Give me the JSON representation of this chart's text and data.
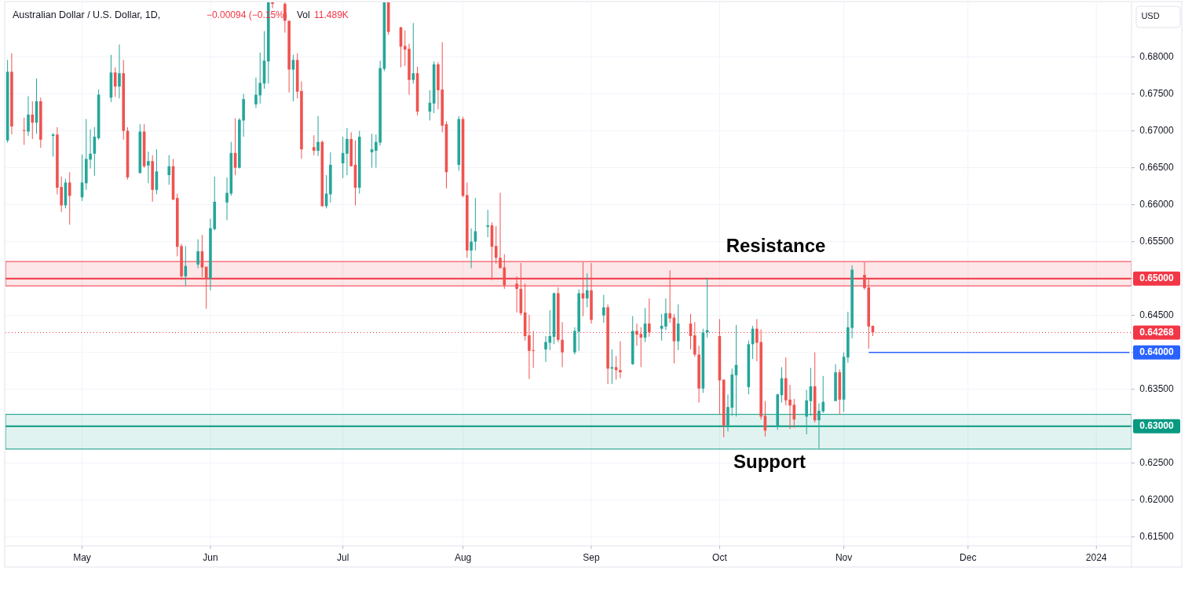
{
  "chart_data": {
    "type": "candlestick",
    "title": "Australian Dollar / U.S. Dollar, 1D,",
    "ylabel": "USD",
    "annotations": [
      "−0.00094 (−0.15%)",
      "Vol",
      "11.489K"
    ],
    "x": [
      "2023-04-13",
      "2023-04-14",
      "2023-04-17",
      "2023-04-18",
      "2023-04-19",
      "2023-04-20",
      "2023-04-21",
      "2023-04-24",
      "2023-04-25",
      "2023-04-26",
      "2023-04-27",
      "2023-04-28",
      "2023-05-01",
      "2023-05-02",
      "2023-05-03",
      "2023-05-04",
      "2023-05-05",
      "2023-05-08",
      "2023-05-09",
      "2023-05-10",
      "2023-05-11",
      "2023-05-12",
      "2023-05-15",
      "2023-05-16",
      "2023-05-17",
      "2023-05-18",
      "2023-05-19",
      "2023-05-22",
      "2023-05-23",
      "2023-05-24",
      "2023-05-25",
      "2023-05-26",
      "2023-05-29",
      "2023-05-30",
      "2023-05-31",
      "2023-06-01",
      "2023-06-02",
      "2023-06-05",
      "2023-06-06",
      "2023-06-07",
      "2023-06-08",
      "2023-06-09",
      "2023-06-12",
      "2023-06-13",
      "2023-06-14",
      "2023-06-15",
      "2023-06-16",
      "2023-06-19",
      "2023-06-20",
      "2023-06-21",
      "2023-06-22",
      "2023-06-23",
      "2023-06-26",
      "2023-06-27",
      "2023-06-28",
      "2023-06-29",
      "2023-06-30",
      "2023-07-03",
      "2023-07-04",
      "2023-07-05",
      "2023-07-06",
      "2023-07-07",
      "2023-07-10",
      "2023-07-11",
      "2023-07-12",
      "2023-07-13",
      "2023-07-14",
      "2023-07-17",
      "2023-07-18",
      "2023-07-19",
      "2023-07-20",
      "2023-07-21",
      "2023-07-24",
      "2023-07-25",
      "2023-07-26",
      "2023-07-27",
      "2023-07-28",
      "2023-07-31",
      "2023-08-01",
      "2023-08-02",
      "2023-08-03",
      "2023-08-04",
      "2023-08-07",
      "2023-08-08",
      "2023-08-09",
      "2023-08-10",
      "2023-08-11",
      "2023-08-14",
      "2023-08-15",
      "2023-08-16",
      "2023-08-17",
      "2023-08-18",
      "2023-08-21",
      "2023-08-22",
      "2023-08-23",
      "2023-08-24",
      "2023-08-25",
      "2023-08-28",
      "2023-08-29",
      "2023-08-30",
      "2023-08-31",
      "2023-09-01",
      "2023-09-04",
      "2023-09-05",
      "2023-09-06",
      "2023-09-07",
      "2023-09-08",
      "2023-09-11",
      "2023-09-12",
      "2023-09-13",
      "2023-09-14",
      "2023-09-15",
      "2023-09-18",
      "2023-09-19",
      "2023-09-20",
      "2023-09-21",
      "2023-09-22",
      "2023-09-25",
      "2023-09-26",
      "2023-09-27",
      "2023-09-28",
      "2023-09-29",
      "2023-10-02",
      "2023-10-03",
      "2023-10-04",
      "2023-10-05",
      "2023-10-06",
      "2023-10-09",
      "2023-10-10",
      "2023-10-11",
      "2023-10-12",
      "2023-10-13",
      "2023-10-16",
      "2023-10-17",
      "2023-10-18",
      "2023-10-19",
      "2023-10-20",
      "2023-10-23",
      "2023-10-24",
      "2023-10-25",
      "2023-10-26",
      "2023-10-27",
      "2023-10-30",
      "2023-10-31",
      "2023-11-01",
      "2023-11-02",
      "2023-11-03",
      "2023-11-06",
      "2023-11-07",
      "2023-11-08"
    ],
    "ohlc": [
      [
        0.6687,
        0.6796,
        0.6684,
        0.678
      ],
      [
        0.678,
        0.6805,
        0.6695,
        0.6706
      ],
      [
        0.6701,
        0.6718,
        0.6681,
        0.67
      ],
      [
        0.6699,
        0.6747,
        0.6693,
        0.6722
      ],
      [
        0.6722,
        0.674,
        0.6689,
        0.6711
      ],
      [
        0.6711,
        0.6771,
        0.6696,
        0.674
      ],
      [
        0.674,
        0.6745,
        0.6677,
        0.6688
      ],
      [
        0.6693,
        0.6697,
        0.6665,
        0.6695
      ],
      [
        0.6695,
        0.6705,
        0.6614,
        0.6623
      ],
      [
        0.6624,
        0.6638,
        0.659,
        0.6599
      ],
      [
        0.6599,
        0.6635,
        0.6595,
        0.663
      ],
      [
        0.663,
        0.6644,
        0.6573,
        0.6612
      ],
      [
        0.661,
        0.6668,
        0.6605,
        0.663
      ],
      [
        0.6629,
        0.6716,
        0.662,
        0.6662
      ],
      [
        0.6661,
        0.6702,
        0.6649,
        0.6669
      ],
      [
        0.6669,
        0.6705,
        0.6639,
        0.6692
      ],
      [
        0.669,
        0.6756,
        0.6688,
        0.6749
      ],
      [
        0.6745,
        0.6803,
        0.6739,
        0.6779
      ],
      [
        0.6779,
        0.6786,
        0.6746,
        0.676
      ],
      [
        0.676,
        0.6817,
        0.6744,
        0.6778
      ],
      [
        0.6778,
        0.6796,
        0.6688,
        0.67
      ],
      [
        0.67,
        0.6705,
        0.6634,
        0.6637
      ],
      [
        0.6643,
        0.6709,
        0.6642,
        0.6699
      ],
      [
        0.6699,
        0.6709,
        0.665,
        0.6652
      ],
      [
        0.6653,
        0.6672,
        0.6629,
        0.6659
      ],
      [
        0.6659,
        0.6667,
        0.6604,
        0.662
      ],
      [
        0.662,
        0.6675,
        0.6614,
        0.6645
      ],
      [
        0.664,
        0.6667,
        0.6627,
        0.6652
      ],
      [
        0.6652,
        0.6662,
        0.6606,
        0.6607
      ],
      [
        0.6609,
        0.6615,
        0.653,
        0.6543
      ],
      [
        0.6544,
        0.6547,
        0.6498,
        0.6503
      ],
      [
        0.6503,
        0.6544,
        0.649,
        0.6517
      ],
      [
        0.6519,
        0.6553,
        0.6514,
        0.6537
      ],
      [
        0.6537,
        0.6559,
        0.6502,
        0.6515
      ],
      [
        0.6516,
        0.6516,
        0.6459,
        0.65
      ],
      [
        0.65,
        0.6581,
        0.6484,
        0.6568
      ],
      [
        0.6567,
        0.6638,
        0.6565,
        0.6604
      ],
      [
        0.6603,
        0.6637,
        0.6579,
        0.6616
      ],
      [
        0.6615,
        0.6685,
        0.6612,
        0.667
      ],
      [
        0.667,
        0.6717,
        0.664,
        0.665
      ],
      [
        0.665,
        0.6717,
        0.6649,
        0.6715
      ],
      [
        0.6714,
        0.675,
        0.6692,
        0.6743
      ],
      [
        0.6736,
        0.6772,
        0.6731,
        0.6749
      ],
      [
        0.6748,
        0.6806,
        0.6737,
        0.6765
      ],
      [
        0.6764,
        0.6835,
        0.6757,
        0.6795
      ],
      [
        0.6794,
        0.6874,
        0.6764,
        0.6874
      ],
      [
        0.6874,
        0.6874,
        0.6866,
        0.6872
      ],
      [
        0.6872,
        0.6874,
        0.6833,
        0.6849
      ],
      [
        0.6849,
        0.6849,
        0.6752,
        0.6783
      ],
      [
        0.6783,
        0.6803,
        0.674,
        0.6796
      ],
      [
        0.6796,
        0.6805,
        0.6744,
        0.6753
      ],
      [
        0.6754,
        0.6767,
        0.6662,
        0.6675
      ],
      [
        0.6678,
        0.6694,
        0.6667,
        0.6673
      ],
      [
        0.6673,
        0.672,
        0.6666,
        0.6685
      ],
      [
        0.6685,
        0.6687,
        0.6597,
        0.6598
      ],
      [
        0.6598,
        0.664,
        0.6595,
        0.6615
      ],
      [
        0.6614,
        0.6671,
        0.6603,
        0.6654
      ],
      [
        0.6656,
        0.6692,
        0.6636,
        0.667
      ],
      [
        0.6669,
        0.6704,
        0.664,
        0.6689
      ],
      [
        0.6689,
        0.6698,
        0.6652,
        0.6652
      ],
      [
        0.6654,
        0.6687,
        0.6599,
        0.6623
      ],
      [
        0.6623,
        0.67,
        0.6615,
        0.6692
      ],
      [
        0.6671,
        0.6696,
        0.665,
        0.6675
      ],
      [
        0.6673,
        0.6695,
        0.665,
        0.6685
      ],
      [
        0.6684,
        0.6795,
        0.668,
        0.6785
      ],
      [
        0.6784,
        0.6874,
        0.6781,
        0.6874
      ],
      [
        0.6874,
        0.6874,
        0.683,
        0.6834
      ],
      [
        0.684,
        0.6841,
        0.6786,
        0.6814
      ],
      [
        0.6815,
        0.6836,
        0.6788,
        0.681
      ],
      [
        0.6811,
        0.6818,
        0.6749,
        0.6769
      ],
      [
        0.6769,
        0.6846,
        0.6764,
        0.6778
      ],
      [
        0.6778,
        0.6787,
        0.6721,
        0.6726
      ],
      [
        0.6726,
        0.6755,
        0.6714,
        0.6738
      ],
      [
        0.6737,
        0.6794,
        0.6724,
        0.679
      ],
      [
        0.679,
        0.6793,
        0.6729,
        0.6755
      ],
      [
        0.6756,
        0.682,
        0.6698,
        0.6707
      ],
      [
        0.6709,
        0.6713,
        0.6622,
        0.6644
      ],
      [
        0.6654,
        0.672,
        0.6646,
        0.6716
      ],
      [
        0.6716,
        0.6719,
        0.661,
        0.6612
      ],
      [
        0.6613,
        0.663,
        0.6528,
        0.6538
      ],
      [
        0.6538,
        0.6568,
        0.6514,
        0.655
      ],
      [
        0.655,
        0.6609,
        0.6538,
        0.6564
      ],
      [
        0.657,
        0.6593,
        0.6556,
        0.6572
      ],
      [
        0.6572,
        0.6576,
        0.6498,
        0.6543
      ],
      [
        0.6544,
        0.6571,
        0.652,
        0.6528
      ],
      [
        0.6528,
        0.6616,
        0.6514,
        0.6514
      ],
      [
        0.6515,
        0.6533,
        0.6486,
        0.6491
      ],
      [
        0.6493,
        0.6503,
        0.6454,
        0.6486
      ],
      [
        0.6486,
        0.6521,
        0.645,
        0.6453
      ],
      [
        0.6454,
        0.6493,
        0.6416,
        0.6422
      ],
      [
        0.6423,
        0.6451,
        0.6364,
        0.6402
      ],
      [
        0.6403,
        0.6429,
        0.6379,
        0.6402
      ],
      [
        0.6404,
        0.6422,
        0.6387,
        0.6414
      ],
      [
        0.6413,
        0.6457,
        0.6403,
        0.6422
      ],
      [
        0.6421,
        0.6481,
        0.6411,
        0.648
      ],
      [
        0.648,
        0.6488,
        0.6414,
        0.6417
      ],
      [
        0.6417,
        0.6441,
        0.638,
        0.64
      ],
      [
        0.64,
        0.6434,
        0.6397,
        0.6429
      ],
      [
        0.6428,
        0.6485,
        0.6402,
        0.648
      ],
      [
        0.648,
        0.6522,
        0.6449,
        0.6473
      ],
      [
        0.6473,
        0.6507,
        0.6461,
        0.6484
      ],
      [
        0.6484,
        0.6521,
        0.6439,
        0.6444
      ],
      [
        0.645,
        0.6478,
        0.644,
        0.6461
      ],
      [
        0.6461,
        0.6465,
        0.6357,
        0.6378
      ],
      [
        0.6378,
        0.6404,
        0.6357,
        0.638
      ],
      [
        0.638,
        0.6395,
        0.6363,
        0.6376
      ],
      [
        0.6376,
        0.6415,
        0.6365,
        0.6373
      ],
      [
        0.6384,
        0.6449,
        0.6383,
        0.6429
      ],
      [
        0.6429,
        0.6439,
        0.6409,
        0.6424
      ],
      [
        0.6425,
        0.6434,
        0.638,
        0.642
      ],
      [
        0.642,
        0.646,
        0.6414,
        0.6439
      ],
      [
        0.6439,
        0.6473,
        0.6421,
        0.6427
      ],
      [
        0.6432,
        0.6452,
        0.6416,
        0.6436
      ],
      [
        0.6435,
        0.6473,
        0.643,
        0.6453
      ],
      [
        0.6453,
        0.6511,
        0.644,
        0.6446
      ],
      [
        0.6447,
        0.6452,
        0.6385,
        0.6415
      ],
      [
        0.6415,
        0.6465,
        0.6403,
        0.6439
      ],
      [
        0.6439,
        0.6452,
        0.6404,
        0.6422
      ],
      [
        0.6423,
        0.6441,
        0.6394,
        0.6397
      ],
      [
        0.6397,
        0.6409,
        0.6332,
        0.6351
      ],
      [
        0.6351,
        0.6432,
        0.6345,
        0.6427
      ],
      [
        0.6427,
        0.6501,
        0.642,
        0.643
      ],
      [
        0.6422,
        0.6445,
        0.6316,
        0.6362
      ],
      [
        0.6363,
        0.6363,
        0.6285,
        0.6301
      ],
      [
        0.6301,
        0.6343,
        0.6293,
        0.6326
      ],
      [
        0.6325,
        0.6378,
        0.6314,
        0.637
      ],
      [
        0.6369,
        0.6437,
        0.6313,
        0.6383
      ],
      [
        0.6353,
        0.6416,
        0.6343,
        0.6411
      ],
      [
        0.6411,
        0.6436,
        0.6391,
        0.6432
      ],
      [
        0.6432,
        0.6445,
        0.6388,
        0.6413
      ],
      [
        0.6414,
        0.6431,
        0.6309,
        0.6313
      ],
      [
        0.6314,
        0.6334,
        0.6286,
        0.6294
      ],
      [
        0.63,
        0.6344,
        0.6295,
        0.6343
      ],
      [
        0.6342,
        0.638,
        0.6332,
        0.6365
      ],
      [
        0.6365,
        0.6393,
        0.6328,
        0.6335
      ],
      [
        0.6336,
        0.6356,
        0.6296,
        0.6328
      ],
      [
        0.6329,
        0.6337,
        0.6298,
        0.6309
      ],
      [
        0.6313,
        0.6349,
        0.6289,
        0.6335
      ],
      [
        0.6334,
        0.6379,
        0.6314,
        0.6354
      ],
      [
        0.6354,
        0.64,
        0.6305,
        0.6308
      ],
      [
        0.6308,
        0.6331,
        0.627,
        0.6321
      ],
      [
        0.632,
        0.6368,
        0.6318,
        0.6333
      ],
      [
        0.6334,
        0.6384,
        0.6334,
        0.6373
      ],
      [
        0.6373,
        0.6377,
        0.6316,
        0.6336
      ],
      [
        0.6336,
        0.64,
        0.6319,
        0.6394
      ],
      [
        0.6393,
        0.6455,
        0.6386,
        0.6434
      ],
      [
        0.6433,
        0.6518,
        0.6419,
        0.6512
      ],
      [
        0.6505,
        0.6522,
        0.6485,
        0.6487
      ],
      [
        0.6488,
        0.6501,
        0.6405,
        0.6435
      ],
      [
        0.6436,
        0.6436,
        0.6422,
        0.6427
      ]
    ],
    "series": [
      {
        "type": "line",
        "color": "#2962ff",
        "x": [
          "2023-11-07",
          "2024-01-09"
        ],
        "values": [
          0.64,
          0.64
        ],
        "value_labels": [
          null,
          "0.64000"
        ]
      }
    ],
    "bands": [
      {
        "axis": "y",
        "from": 0.649,
        "to": 0.6523,
        "label": "Resistance",
        "color": "#f23645"
      },
      {
        "axis": "y",
        "from": 0.6269,
        "to": 0.6316,
        "label": "Support",
        "color": "#089981"
      }
    ],
    "ref_lines": [
      {
        "axis": "y",
        "value": 0.65,
        "label": "0.65000",
        "color": "#f23645"
      },
      {
        "axis": "y",
        "value": 0.63,
        "label": "0.63000",
        "color": "#089981"
      },
      {
        "axis": "y",
        "value": 0.64268,
        "label": "0.64268",
        "color": "#f23645",
        "line_style": "dotted"
      }
    ],
    "xlim": [
      "2023-04-13",
      "2024-01-09"
    ],
    "xticks": [
      {
        "value": "2023-05-01",
        "label": "May"
      },
      {
        "value": "2023-06-01",
        "label": "Jun"
      },
      {
        "value": "2023-07-03",
        "label": "Jul"
      },
      {
        "value": "2023-08-01",
        "label": "Aug"
      },
      {
        "value": "2023-09-01",
        "label": "Sep"
      },
      {
        "value": "2023-10-02",
        "label": "Oct"
      },
      {
        "value": "2023-11-01",
        "label": "Nov"
      },
      {
        "value": "2023-12-01",
        "label": "Dec"
      },
      {
        "value": "2024-01-01",
        "label": "2024"
      }
    ],
    "ylim": [
      0.6138,
      0.6874
    ],
    "yticks": [
      {
        "value": 0.615,
        "label": "0.61500"
      },
      {
        "value": 0.62,
        "label": "0.62000"
      },
      {
        "value": 0.625,
        "label": "0.62500"
      },
      {
        "value": 0.63,
        "label": null
      },
      {
        "value": 0.635,
        "label": "0.63500"
      },
      {
        "value": 0.64,
        "label": null
      },
      {
        "value": 0.645,
        "label": "0.64500"
      },
      {
        "value": 0.65,
        "label": null
      },
      {
        "value": 0.655,
        "label": "0.65500"
      },
      {
        "value": 0.66,
        "label": "0.66000"
      },
      {
        "value": 0.665,
        "label": "0.66500"
      },
      {
        "value": 0.67,
        "label": "0.67000"
      },
      {
        "value": 0.675,
        "label": "0.67500"
      },
      {
        "value": 0.68,
        "label": "0.68000"
      }
    ],
    "grid": true
  }
}
